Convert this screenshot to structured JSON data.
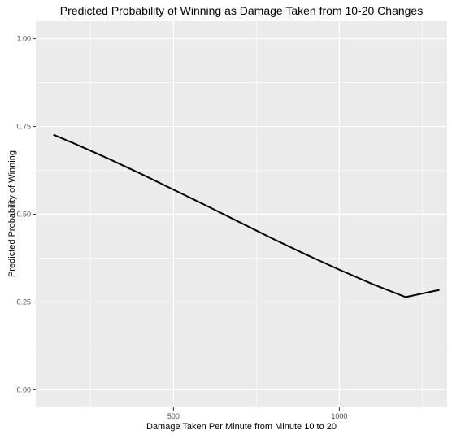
{
  "chart_data": {
    "type": "line",
    "title": "Predicted Probability of Winning as Damage Taken from 10-20 Changes",
    "xlabel": "Damage Taken Per Minute from Minute 10 to 20",
    "ylabel": "Predicted Probability of Winning",
    "xlim": [
      85,
      1325
    ],
    "ylim": [
      -0.05,
      1.05
    ],
    "x_ticks": [
      500,
      1000
    ],
    "x_tick_labels": [
      "500",
      "1000"
    ],
    "x_minor_ticks": [
      250,
      750,
      1250
    ],
    "y_ticks": [
      0,
      0.25,
      0.5,
      0.75,
      1.0
    ],
    "y_tick_labels": [
      "0.00",
      "0.25",
      "0.50",
      "0.75",
      "1.00"
    ],
    "y_minor_ticks": [
      0.125,
      0.375,
      0.625,
      0.875
    ],
    "grid": true,
    "colors": {
      "panel_background": "#ebebeb",
      "grid_major": "#ffffff",
      "line": "#000000",
      "tick_text": "#4d4d4d"
    },
    "series": [
      {
        "x": [
          140,
          200,
          300,
          400,
          500,
          600,
          700,
          800,
          900,
          1000,
          1100,
          1200,
          1300
        ],
        "y": [
          0.726,
          0.702,
          0.66,
          0.616,
          0.57,
          0.524,
          0.477,
          0.43,
          0.385,
          0.342,
          0.301,
          0.264,
          0.284
        ]
      }
    ]
  }
}
